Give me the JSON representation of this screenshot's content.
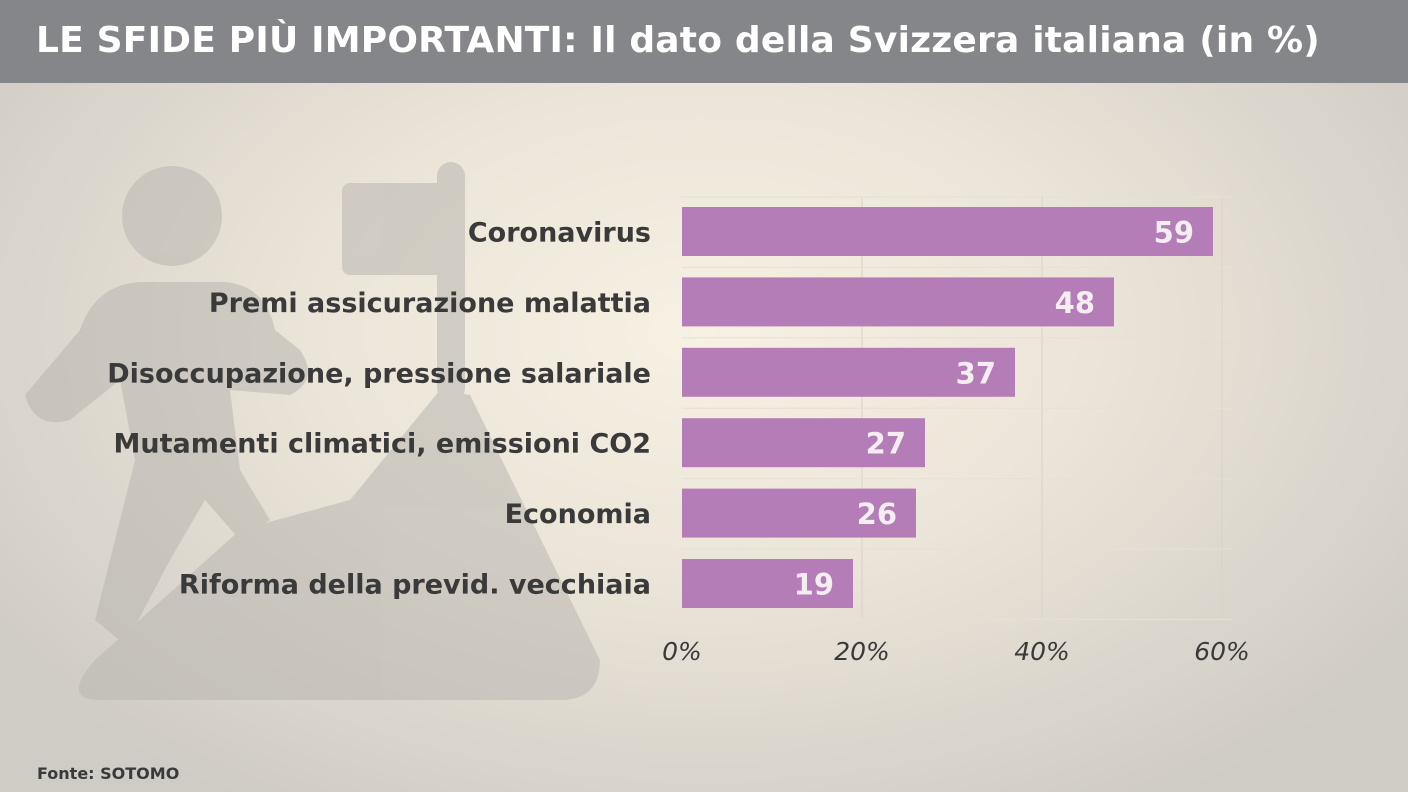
{
  "header": {
    "title": "LE SFIDE PIÙ IMPORTANTI: Il dato della Svizzera italiana (in %)"
  },
  "chart_data": {
    "type": "bar",
    "orientation": "horizontal",
    "title": "LE SFIDE PIÙ IMPORTANTI: Il dato della Svizzera italiana (in %)",
    "categories": [
      "Coronavirus",
      "Premi assicurazione malattia",
      "Disoccupazione, pressione salariale",
      "Mutamenti climatici, emissioni CO2",
      "Economia",
      "Riforma della previd. vecchiaia"
    ],
    "values": [
      59,
      48,
      37,
      27,
      26,
      19
    ],
    "value_labels": [
      "59",
      "48",
      "37",
      "27",
      "26",
      "19"
    ],
    "xlim": [
      0,
      60
    ],
    "xticks": [
      0,
      20,
      40,
      60
    ],
    "xtick_labels": [
      "0%",
      "20%",
      "40%",
      "60%"
    ],
    "xlabel": "",
    "ylabel": "",
    "grid": true,
    "legend": "none",
    "bar_color": "#b47db8"
  },
  "source": "Fonte: SOTOMO",
  "decor": {
    "icon": "mountain-climber-icon"
  }
}
